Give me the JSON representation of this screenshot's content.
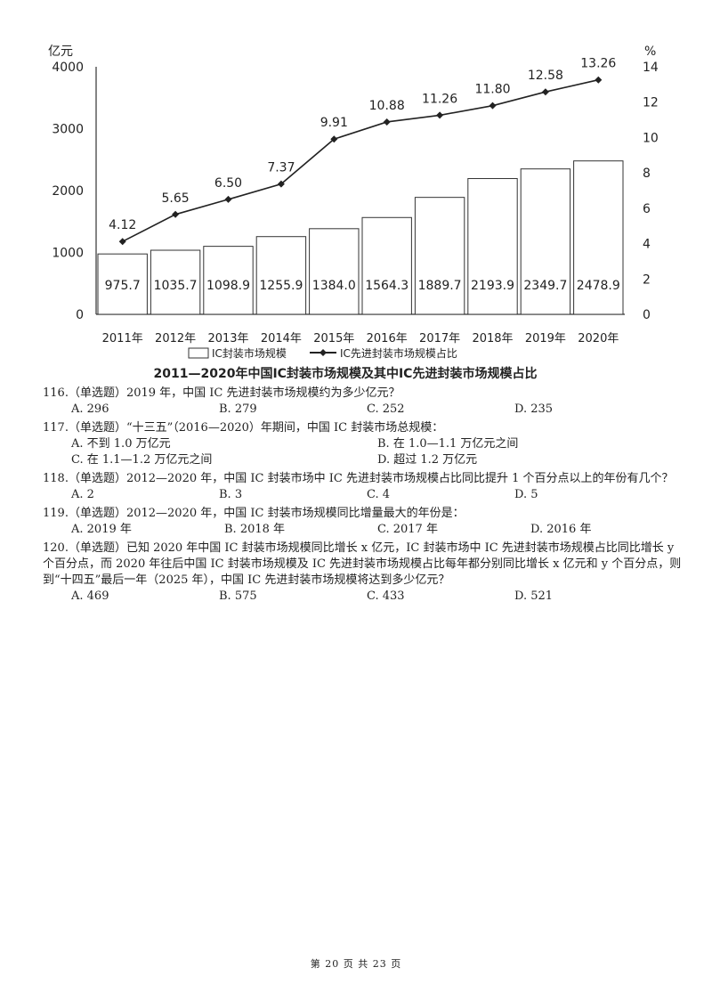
{
  "chart_data": {
    "type": "bar+line",
    "title": "2011—2020年中国IC封装市场规模及其中IC先进封装市场规模占比",
    "left_unit": "亿元",
    "right_unit": "%",
    "categories": [
      "2011年",
      "2012年",
      "2013年",
      "2014年",
      "2015年",
      "2016年",
      "2017年",
      "2018年",
      "2019年",
      "2020年"
    ],
    "y_left_ticks": [
      "0",
      "1000",
      "2000",
      "3000",
      "4000"
    ],
    "y_left_range": [
      0,
      4000
    ],
    "y_right_ticks": [
      "0",
      "2",
      "4",
      "6",
      "8",
      "10",
      "12",
      "14"
    ],
    "y_right_range": [
      0,
      14
    ],
    "legend": [
      "IC封装市场规模",
      "IC先进封装市场规模占比"
    ],
    "series": [
      {
        "name": "IC封装市场规模",
        "kind": "bar",
        "values": [
          975.7,
          1035.7,
          1098.9,
          1255.9,
          1384.0,
          1564.3,
          1889.7,
          2193.9,
          2349.7,
          2478.9
        ],
        "labels": [
          "975.7",
          "1035.7",
          "1098.9",
          "1255.9",
          "1384.0",
          "1564.3",
          "1889.7",
          "2193.9",
          "2349.7",
          "2478.9"
        ]
      },
      {
        "name": "IC先进封装市场规模占比",
        "kind": "line",
        "values": [
          4.12,
          5.65,
          6.5,
          7.37,
          9.91,
          10.88,
          11.26,
          11.8,
          12.58,
          13.26
        ],
        "labels": [
          "4.12",
          "5.65",
          "6.50",
          "7.37",
          "9.91",
          "10.88",
          "11.26",
          "11.80",
          "12.58",
          "13.26"
        ]
      }
    ]
  },
  "questions": [
    {
      "stem": "116.（单选题）2019 年，中国 IC 先进封装市场规模约为多少亿元？",
      "options": [
        "A. 296",
        "B. 279",
        "C. 252",
        "D. 235"
      ]
    },
    {
      "stem": "117.（单选题）“十三五”（2016—2020）年期间，中国 IC 封装市场总规模：",
      "options": [
        "A. 不到 1.0 万亿元",
        "B. 在 1.0—1.1 万亿元之间",
        "C. 在 1.1—1.2 万亿元之间",
        "D. 超过 1.2 万亿元"
      ]
    },
    {
      "stem": "118.（单选题）2012—2020 年，中国 IC 封装市场中 IC 先进封装市场规模占比同比提升 1 个百分点以上的年份有几个？",
      "options": [
        "A. 2",
        "B. 3",
        "C. 4",
        "D. 5"
      ]
    },
    {
      "stem": "119.（单选题）2012—2020 年，中国 IC 封装市场规模同比增量最大的年份是：",
      "options": [
        "A. 2019 年",
        "B. 2018 年",
        "C. 2017 年",
        "D. 2016 年"
      ]
    },
    {
      "stem": "120.（单选题）已知 2020 年中国 IC 封装市场规模同比增长 x 亿元，IC 封装市场中 IC 先进封装市场规模占比同比增长 y 个百分点，而 2020 年往后中国 IC 封装市场规模及 IC 先进封装市场规模占比每年都分别同比增长 x 亿元和 y 个百分点，则到“十四五”最后一年（2025 年），中国 IC 先进封装市场规模将达到多少亿元？",
      "options": [
        "A. 469",
        "B. 575",
        "C. 433",
        "D. 521"
      ]
    }
  ],
  "footer": "第 20 页 共 23 页"
}
